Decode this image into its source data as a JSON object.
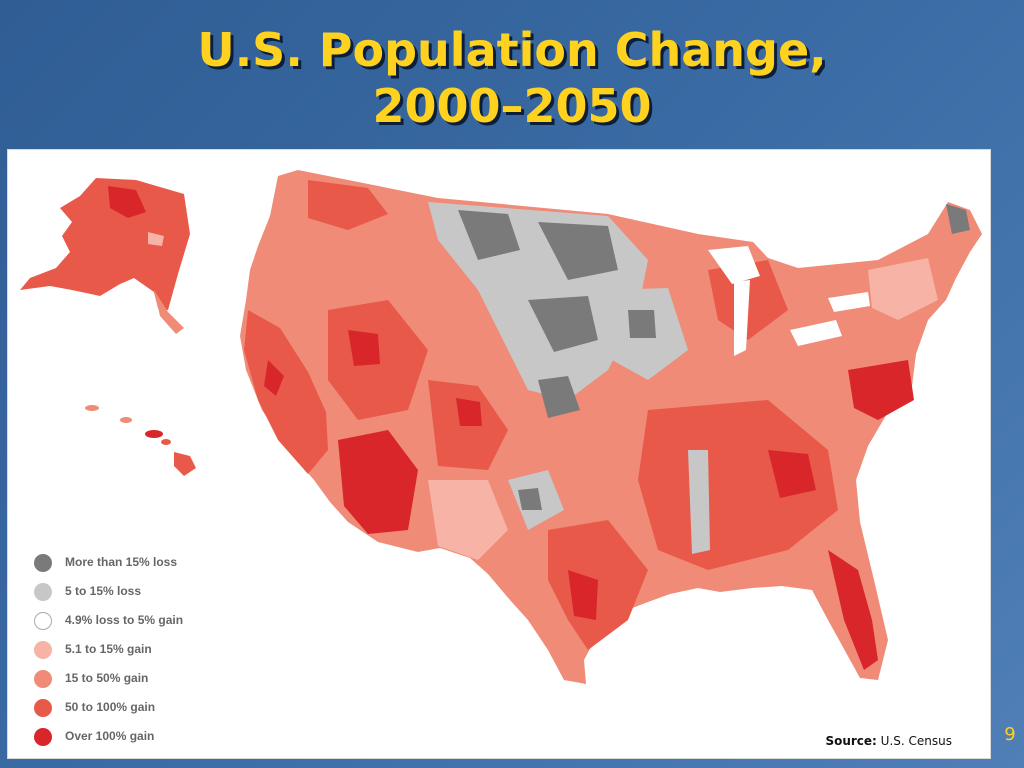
{
  "slide": {
    "title_line1": "U.S. Population Change,",
    "title_line2": "2000–2050",
    "page_number": "9"
  },
  "source": {
    "label": "Source:",
    "value": "U.S. Census"
  },
  "map": {
    "regions": [
      "Alaska",
      "Hawaii",
      "Contiguous United States"
    ]
  },
  "legend": [
    {
      "label": "More than 15% loss",
      "color": "#7a7a7a"
    },
    {
      "label": "5 to 15% loss",
      "color": "#c7c7c7"
    },
    {
      "label": "4.9% loss to 5% gain",
      "color": "#ffffff"
    },
    {
      "label": "5.1 to 15% gain",
      "color": "#f6b3a6"
    },
    {
      "label": "15 to 50% gain",
      "color": "#ef8b77"
    },
    {
      "label": "50 to 100% gain",
      "color": "#e8594a"
    },
    {
      "label": "Over 100% gain",
      "color": "#d8262b"
    }
  ]
}
